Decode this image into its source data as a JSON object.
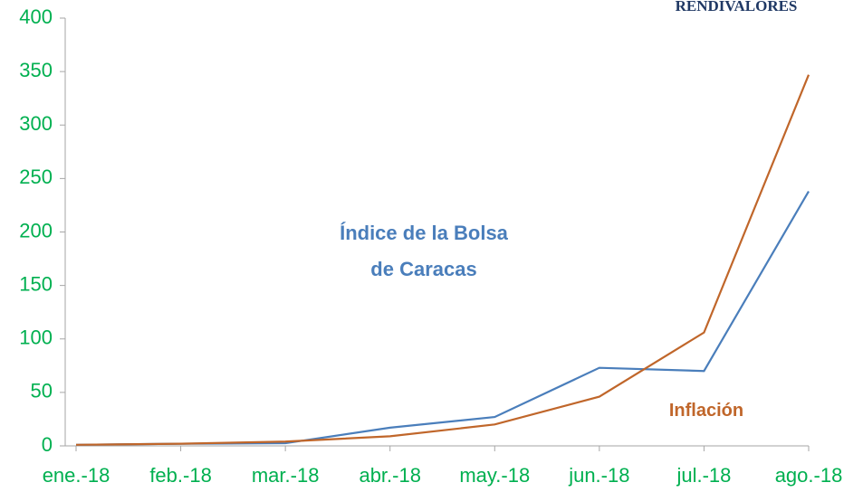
{
  "chart_data": {
    "type": "line",
    "source": "RENDIVALORES",
    "categories": [
      "ene.-18",
      "feb.-18",
      "mar.-18",
      "abr.-18",
      "may.-18",
      "jun.-18",
      "jul.-18",
      "ago.-18"
    ],
    "series": [
      {
        "name": "Índice de la Bolsa de Caracas",
        "color": "#4a7ebb",
        "values": [
          1,
          2,
          2.5,
          17,
          27,
          73,
          70,
          238
        ]
      },
      {
        "name": "Inflación",
        "color": "#c0662a",
        "values": [
          1,
          2,
          4,
          9,
          20,
          46,
          106,
          347
        ]
      }
    ],
    "ylim": [
      0,
      400
    ],
    "yticks": [
      0,
      50,
      100,
      150,
      200,
      250,
      300,
      350,
      400
    ],
    "grid": false
  }
}
